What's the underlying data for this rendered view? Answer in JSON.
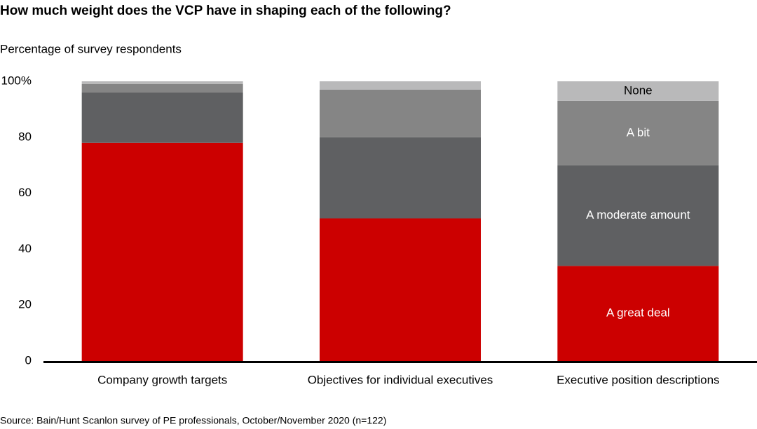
{
  "chart_data": {
    "type": "stacked-bar",
    "title": "How much weight does the VCP have in shaping each of the following?",
    "subtitle": "Percentage of survey respondents",
    "source": "Source: Bain/Hunt Scanlon survey of PE professionals, October/November 2020 (n=122)",
    "categories": [
      "Company growth targets",
      "Objectives for individual executives",
      "Executive position descriptions"
    ],
    "series": [
      {
        "name": "A great deal",
        "color": "#cc0000",
        "values": [
          78,
          51,
          34
        ]
      },
      {
        "name": "A moderate amount",
        "color": "#5f6062",
        "values": [
          18,
          29,
          36
        ]
      },
      {
        "name": "A bit",
        "color": "#858585",
        "values": [
          3,
          17,
          23
        ]
      },
      {
        "name": "None",
        "color": "#b9b9ba",
        "values": [
          1,
          3,
          7
        ]
      }
    ],
    "ylim": [
      0,
      100
    ],
    "yticks": [
      0,
      20,
      40,
      60,
      80,
      {
        "value": 100,
        "label": "100%"
      }
    ]
  }
}
